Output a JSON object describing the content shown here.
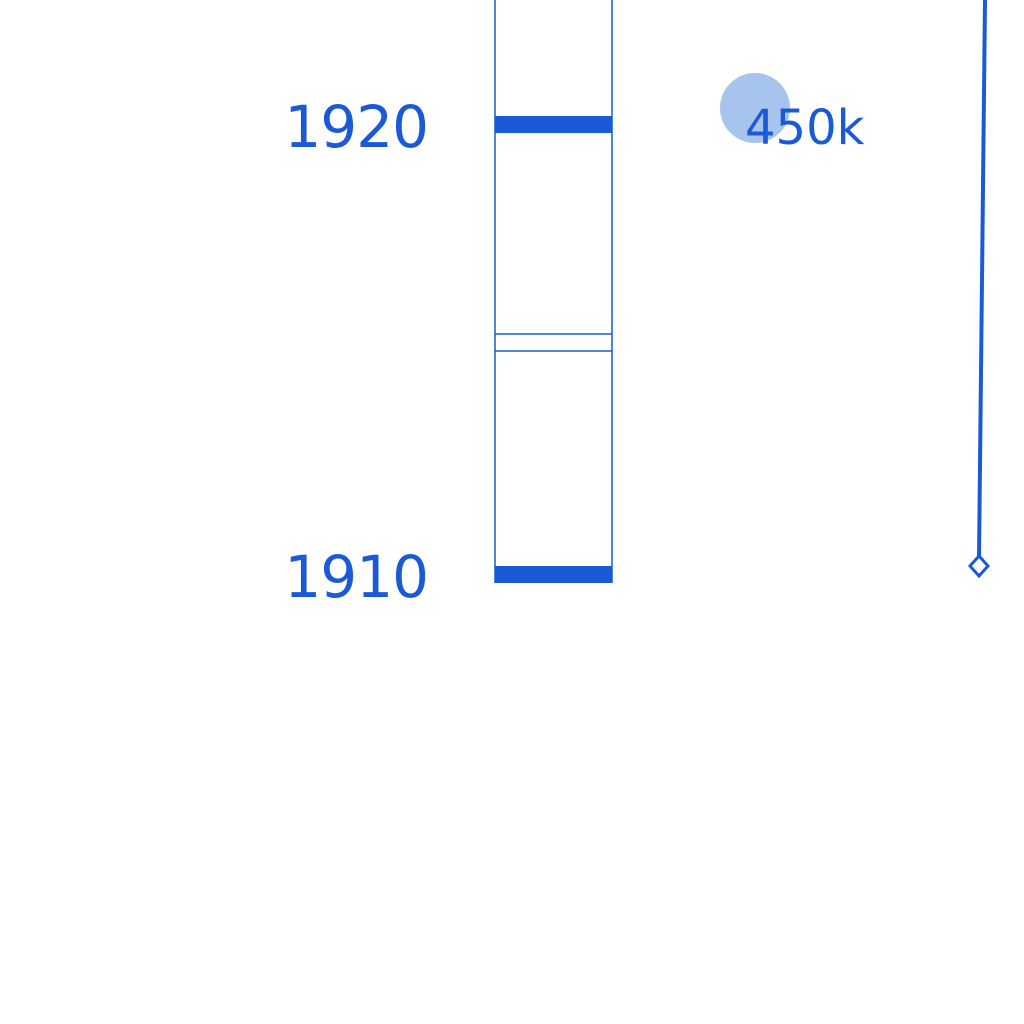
{
  "colors": {
    "accent": "#1a5ad7",
    "marker_fill": "#a6c4ee",
    "background": "#ffffff"
  },
  "timeline": {
    "ticks": [
      {
        "year": "1920",
        "major": true
      },
      {
        "year": "1910",
        "major": true
      }
    ],
    "annotation": {
      "label": "450k",
      "year": "1920",
      "marker_icon": "circle-marker-icon"
    },
    "end_marker_icon": "diamond-end-icon"
  }
}
